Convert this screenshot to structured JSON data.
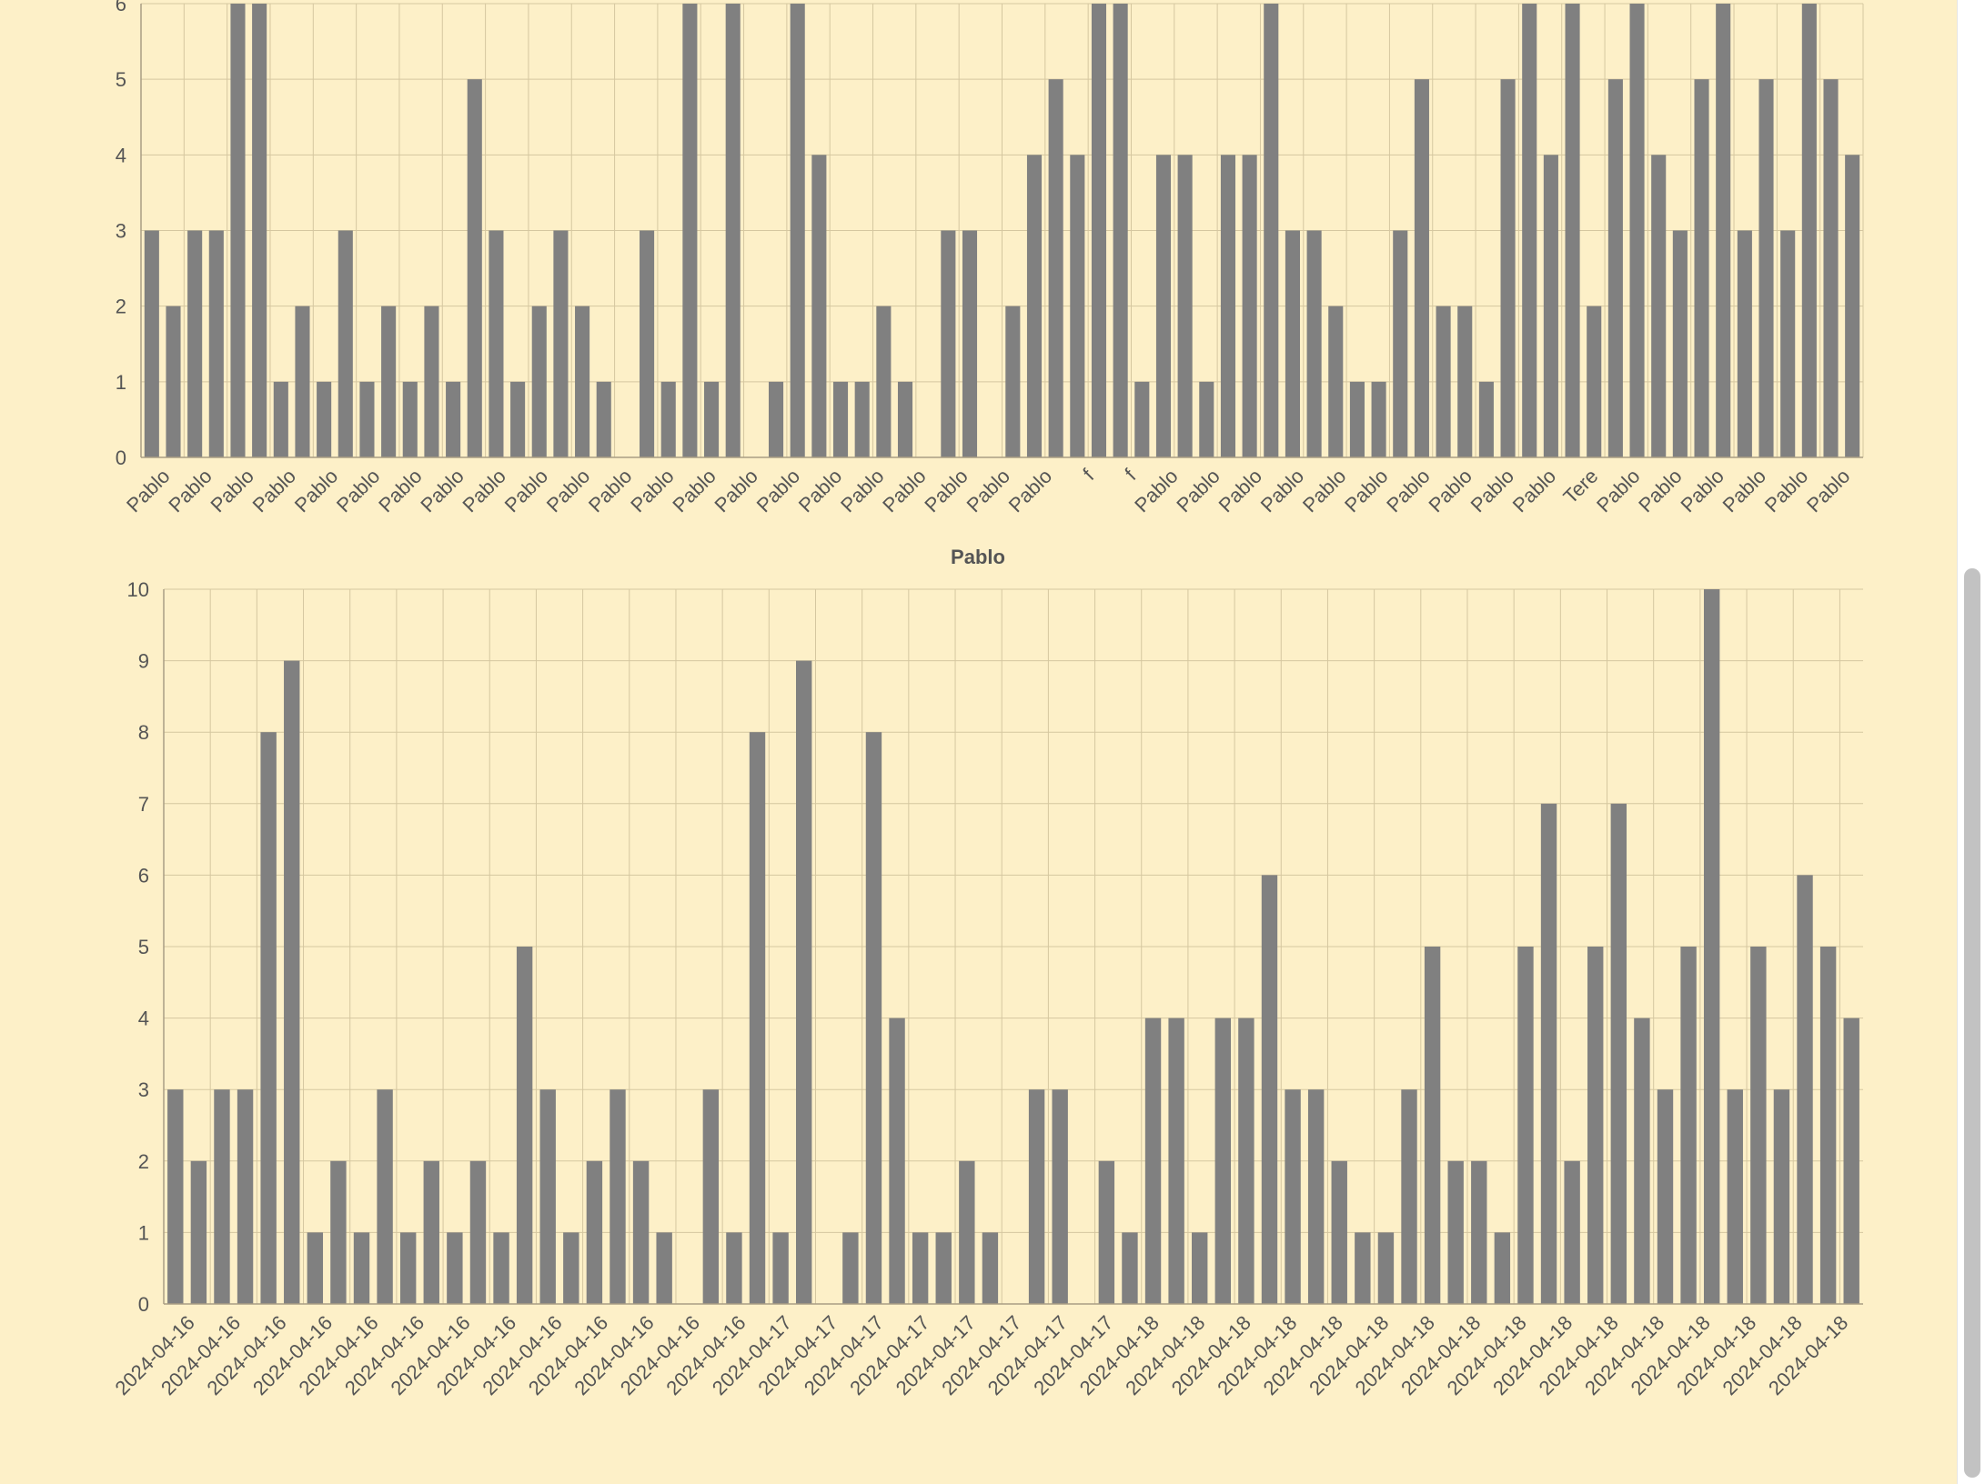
{
  "colors": {
    "background": "#fdf0c8",
    "bar": "#808080",
    "grid": "#d5c7a0",
    "axis": "#a99e84",
    "text": "#555555"
  },
  "chart_data": [
    {
      "type": "bar",
      "title": "",
      "ylim": [
        0,
        6
      ],
      "yticks": [
        0,
        1,
        2,
        3,
        4,
        5,
        6
      ],
      "grid": true,
      "x_tick_labels": [
        "Pablo",
        "Pablo",
        "Pablo",
        "Pablo",
        "Pablo",
        "Pablo",
        "Pablo",
        "Pablo",
        "Pablo",
        "Pablo",
        "Pablo",
        "Pablo",
        "Pablo",
        "Pablo",
        "Pablo",
        "Pablo",
        "Pablo",
        "Pablo",
        "Pablo",
        "Pablo",
        "Pablo",
        "Pablo",
        "f",
        "f",
        "Pablo",
        "Pablo",
        "Pablo",
        "Pablo",
        "Pablo",
        "Pablo",
        "Pablo",
        "Pablo",
        "Pablo",
        "Pablo",
        "Tere",
        "Pablo",
        "Pablo",
        "Pablo",
        "Pablo",
        "Pablo",
        "Pablo"
      ],
      "values": [
        3,
        2,
        3,
        3,
        6,
        6,
        1,
        2,
        1,
        3,
        1,
        2,
        1,
        2,
        1,
        5,
        3,
        1,
        2,
        3,
        2,
        1,
        0,
        3,
        1,
        6,
        1,
        6,
        0,
        1,
        6,
        4,
        1,
        1,
        2,
        1,
        0,
        3,
        3,
        0,
        2,
        4,
        5,
        4,
        6,
        6,
        1,
        4,
        4,
        1,
        4,
        4,
        6,
        3,
        3,
        2,
        1,
        1,
        3,
        5,
        2,
        2,
        1,
        5,
        6,
        4,
        6,
        2,
        5,
        6,
        4,
        3,
        5,
        6,
        3,
        5,
        3,
        6,
        5,
        4
      ]
    },
    {
      "type": "bar",
      "title": "Pablo",
      "ylim": [
        0,
        10
      ],
      "yticks": [
        0,
        1,
        2,
        3,
        4,
        5,
        6,
        7,
        8,
        9,
        10
      ],
      "grid": true,
      "x_tick_labels": [
        "2024-04-16",
        "2024-04-16",
        "2024-04-16",
        "2024-04-16",
        "2024-04-16",
        "2024-04-16",
        "2024-04-16",
        "2024-04-16",
        "2024-04-16",
        "2024-04-16",
        "2024-04-16",
        "2024-04-16",
        "2024-04-16",
        "2024-04-17",
        "2024-04-17",
        "2024-04-17",
        "2024-04-17",
        "2024-04-17",
        "2024-04-17",
        "2024-04-17",
        "2024-04-17",
        "2024-04-18",
        "2024-04-18",
        "2024-04-18",
        "2024-04-18",
        "2024-04-18",
        "2024-04-18",
        "2024-04-18",
        "2024-04-18",
        "2024-04-18",
        "2024-04-18",
        "2024-04-18",
        "2024-04-18",
        "2024-04-18",
        "2024-04-18",
        "2024-04-18",
        "2024-04-18"
      ],
      "values": [
        3,
        2,
        3,
        3,
        8,
        9,
        1,
        2,
        1,
        3,
        1,
        2,
        1,
        2,
        1,
        5,
        3,
        1,
        2,
        3,
        2,
        1,
        0,
        3,
        1,
        8,
        1,
        9,
        0,
        1,
        8,
        4,
        1,
        1,
        2,
        1,
        0,
        3,
        3,
        0,
        2,
        1,
        4,
        4,
        1,
        4,
        4,
        6,
        3,
        3,
        2,
        1,
        1,
        3,
        5,
        2,
        2,
        1,
        5,
        7,
        2,
        5,
        7,
        4,
        3,
        5,
        10,
        3,
        5,
        3,
        6,
        5,
        4
      ]
    }
  ]
}
